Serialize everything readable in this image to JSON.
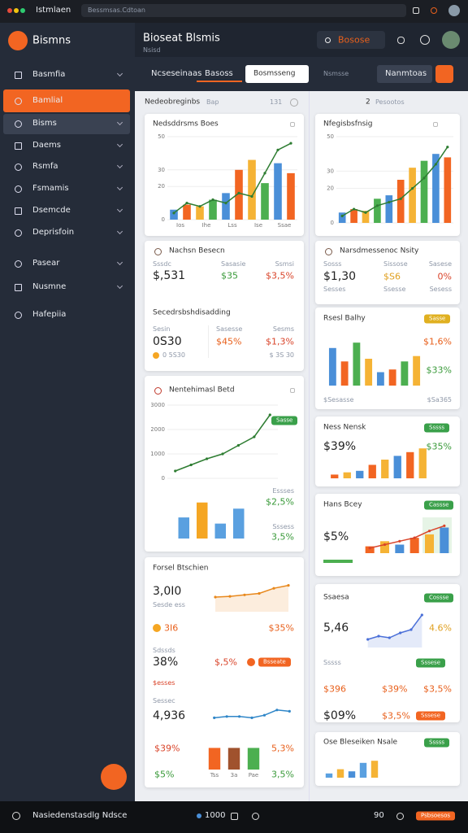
{
  "browser": {
    "tab": "Istmlaen",
    "url": "Bessmsas.Cdtoan"
  },
  "sidebar": {
    "brand": "Bismns",
    "items": [
      "Basmfia",
      "Bamlial",
      "Bisms",
      "Daems",
      "Rsmfa",
      "Fsmamis",
      "Dsemcde",
      "Deprisfoin",
      "Pasear",
      "Nusmne",
      "Hafepiia"
    ]
  },
  "header": {
    "title": "Bioseat Blsmis",
    "subtitle": "Nsisd",
    "search": "Bosose"
  },
  "tabs": [
    "Ncseseinaas",
    "Basoss",
    "Bosmsseng",
    "Nsmsse",
    "Nanmtoas"
  ],
  "left": {
    "heading": "Nedeobreginbs",
    "tag": "Bap",
    "count": "131",
    "cards": [
      {
        "title": "Nedsddrsms Boes",
        "chart": {
          "bars": [
            6,
            9,
            8,
            12,
            16,
            30,
            36,
            22,
            34,
            28
          ],
          "colors": [
            "#4a8fd8",
            "#f26522",
            "#f5b335",
            "#4caf50"
          ],
          "line": [
            4,
            10,
            8,
            12,
            10,
            16,
            14,
            28,
            42,
            46
          ],
          "line_color": "#2e7d32",
          "ylim": [
            0,
            50
          ],
          "yticks": [
            0,
            20,
            30,
            50
          ],
          "xlabels": [
            "Ios",
            "Ihe",
            "Lss",
            "Ise",
            "Ssae"
          ]
        }
      },
      {
        "title": "Nachsn Besecn",
        "stats": [
          {
            "label": "Sssdc",
            "value": "$,531"
          },
          {
            "label": "Sasasie",
            "value": "$35"
          },
          {
            "label": "Ssmsi",
            "value": "$3,5%"
          }
        ],
        "subtitle": "Secedrsbshdisadding",
        "stats2": [
          {
            "label": "Sesin",
            "value": "0S30",
            "note": "0 5S30"
          },
          {
            "label": "Sasesse",
            "value": "$45%"
          },
          {
            "label": "Sesms",
            "value": "$1,3%",
            "note": "$ 3S 30"
          }
        ]
      },
      {
        "title": "Nentehimasl Betd",
        "badge": "Sasse",
        "chart": {
          "line": [
            300,
            550,
            800,
            1000,
            1350,
            1700,
            2600
          ],
          "line_color": "#2e7d32",
          "ylim": [
            0,
            3000
          ],
          "yticks": [
            0,
            1000,
            2000,
            3000
          ]
        },
        "chart2": {
          "bars": [
            48,
            82,
            34,
            68
          ],
          "colors": [
            "#5aa0e0",
            "#f5a623",
            "#5aa0e0",
            "#5aa0e0"
          ],
          "ylim": [
            0,
            100
          ]
        },
        "stats": [
          {
            "label": "Essses",
            "value": "$2,5%"
          },
          {
            "label": "Sssess",
            "value": "3,5%"
          }
        ]
      },
      {
        "title": "Forsel Btschien",
        "value": "3,0I0",
        "note": "Sesde ess",
        "chart": {
          "line": [
            20,
            21,
            23,
            25,
            32,
            36
          ],
          "line_color": "#e8881c",
          "area": true,
          "ylim": [
            0,
            40
          ]
        },
        "stat_a": "3I6",
        "stat_b": "$35%",
        "label2": "Sdssds",
        "value2": "38%",
        "stat_c": "$,5%",
        "button": "Bsseate",
        "note2": "$esses",
        "label3": "Sessec",
        "value3": "4,936",
        "chart2": {
          "line": [
            12,
            14,
            14,
            12,
            16,
            24,
            22
          ],
          "line_color": "#2f86c8",
          "ylim": [
            0,
            30
          ]
        },
        "stats": [
          "$39%",
          "$5%",
          "5,3%",
          "3,5%"
        ],
        "chart3": {
          "bars": [
            70,
            70,
            70
          ],
          "colors": [
            "#f26522",
            "#a0522d",
            "#4caf50"
          ],
          "ylim": [
            0,
            100
          ],
          "xlabels": [
            "Tss",
            "3a",
            "Pae"
          ]
        }
      }
    ]
  },
  "right": {
    "heading": "Pesootos",
    "count": "2",
    "cards": [
      {
        "title": "Nfegisbsfnsig",
        "chart": {
          "bars": [
            6,
            8,
            7,
            14,
            16,
            25,
            32,
            36,
            40,
            38
          ],
          "colors": [
            "#4a8fd8",
            "#f26522",
            "#f5b335",
            "#4caf50"
          ],
          "line": [
            4,
            8,
            6,
            10,
            12,
            14,
            20,
            26,
            34,
            44
          ],
          "line_color": "#2e7d32",
          "ylim": [
            0,
            50
          ],
          "yticks": [
            0,
            20,
            30,
            50
          ]
        }
      },
      {
        "title": "Narsdmessenoc Nsity",
        "stats": [
          {
            "label": "Sosss",
            "value": "$1,30",
            "note": "Sesses"
          },
          {
            "label": "Sissose",
            "value": "$S6",
            "note": "Ssesse"
          },
          {
            "label": "Sasese",
            "value": "0%",
            "note": "Sesess"
          }
        ]
      },
      {
        "title": "Rsesl Balhy",
        "badge": "Sasse",
        "chart": {
          "bars": [
            70,
            45,
            80,
            50,
            25,
            30,
            45,
            55
          ],
          "colors": [
            "#4a8fd8",
            "#f26522",
            "#4caf50",
            "#f5b335"
          ],
          "ylim": [
            0,
            100
          ]
        },
        "stats": [
          "$1,6%",
          "$33%"
        ],
        "note": "$Sesasse",
        "note2": "$Sa365"
      },
      {
        "title": "Ness Nensk",
        "badge": "Sssss",
        "value": "$39%",
        "chart": {
          "bars": [
            5,
            8,
            10,
            18,
            25,
            30,
            35,
            40
          ],
          "colors": [
            "#f26522",
            "#f5b335",
            "#4a8fd8"
          ],
          "ylim": [
            0,
            50
          ]
        },
        "stat": "$35%"
      },
      {
        "title": "Hans Bcey",
        "badge": "Cassse",
        "value": "$5%",
        "chart": {
          "bars": [
            8,
            14,
            10,
            18,
            22,
            30
          ],
          "colors": [
            "#f26522",
            "#f5b335",
            "#4a8fd8"
          ],
          "line": [
            6,
            10,
            14,
            18,
            26,
            32
          ],
          "line_color": "#d9442a",
          "ylim": [
            0,
            40
          ]
        }
      },
      {
        "title": "Ssaesa",
        "badge": "Cossse",
        "value": "5,46",
        "stat": "4.6%",
        "chart": {
          "line": [
            10,
            14,
            12,
            18,
            22,
            40
          ],
          "line_color": "#4a6fd8",
          "area": true,
          "ylim": [
            0,
            50
          ]
        },
        "rows": [
          {
            "label": "Sssss",
            "badge": "Sssese",
            "values": [
              "$396",
              "$39%",
              "$3,5%"
            ]
          },
          {
            "values": [
              "$09%",
              "$3,5%"
            ],
            "button": "Sssese"
          }
        ]
      },
      {
        "title": "Ose Bleseiken Nsale",
        "badge": "Sssss",
        "chart": {
          "bars": [
            10,
            20,
            15,
            35,
            40
          ],
          "colors": [
            "#5aa0e0",
            "#f5b335",
            "#4a8fd8"
          ],
          "ylim": [
            0,
            50
          ]
        }
      }
    ]
  },
  "footer": {
    "status": "Nasiedenstasdlg Ndsce",
    "center": "1000",
    "right": "90",
    "button": "Psbsoesos"
  }
}
